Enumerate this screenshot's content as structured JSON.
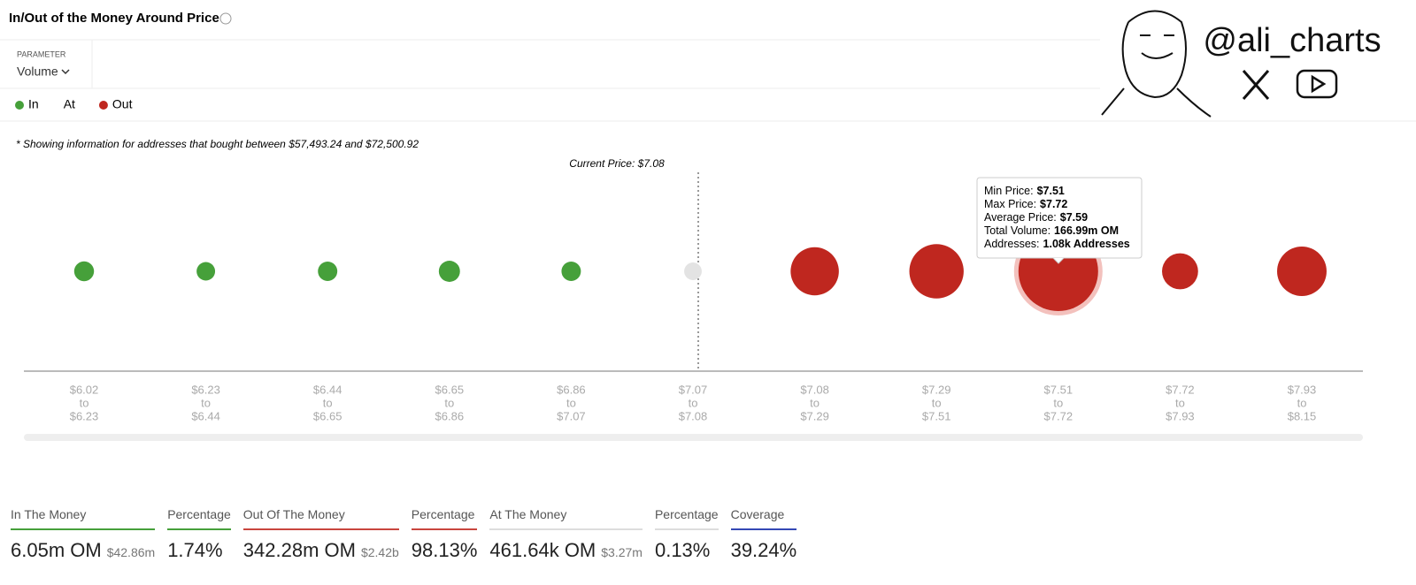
{
  "header": {
    "title": "In/Out of the Money Around Price",
    "parameter_label": "PARAMETER",
    "parameter_value": "Volume"
  },
  "chart_data": {
    "type": "bubble",
    "note": "* Showing information for addresses that bought between $57,493.24 and $72,500.92",
    "annotation": "Current Price: $7.08",
    "categories": [
      [
        "$6.02",
        "to",
        "$6.23"
      ],
      [
        "$6.23",
        "to",
        "$6.44"
      ],
      [
        "$6.44",
        "to",
        "$6.65"
      ],
      [
        "$6.65",
        "to",
        "$6.86"
      ],
      [
        "$6.86",
        "to",
        "$7.07"
      ],
      [
        "$7.07",
        "to",
        "$7.08"
      ],
      [
        "$7.08",
        "to",
        "$7.29"
      ],
      [
        "$7.29",
        "to",
        "$7.51"
      ],
      [
        "$7.51",
        "to",
        "$7.72"
      ],
      [
        "$7.72",
        "to",
        "$7.93"
      ],
      [
        "$7.93",
        "to",
        "$8.15"
      ]
    ],
    "series": [
      {
        "name": "In",
        "color": "#46a03a",
        "values": [
          1.26,
          0.74,
          1.07,
          1.91,
          1.07,
          null,
          null,
          null,
          null,
          null,
          null
        ]
      },
      {
        "name": "At",
        "color": "#e3e3e3",
        "values": [
          null,
          null,
          null,
          null,
          null,
          0.46,
          null,
          null,
          null,
          null,
          null
        ]
      },
      {
        "name": "Out",
        "color": "#bf271f",
        "values": [
          null,
          null,
          null,
          null,
          null,
          null,
          45.2,
          62.8,
          166.99,
          18.7,
          48.6
        ]
      }
    ],
    "tooltip": [
      {
        "label": "Min Price:",
        "value": "$7.51"
      },
      {
        "label": "Max Price:",
        "value": "$7.72"
      },
      {
        "label": "Average Price:",
        "value": "$7.59"
      },
      {
        "label": "Total Volume:",
        "value": "166.99m OM"
      },
      {
        "label": "Addresses:",
        "value": "1.08k Addresses"
      }
    ]
  },
  "summary": [
    {
      "label": "In The Money",
      "value": "6.05m OM",
      "sub": "$42.86m",
      "color": "#46a03a"
    },
    {
      "label": "Percentage",
      "value": "1.74%",
      "color": "#46a03a"
    },
    {
      "label": "Out Of The Money",
      "value": "342.28m OM",
      "sub": "$2.42b",
      "color": "#c9453e"
    },
    {
      "label": "Percentage",
      "value": "98.13%",
      "color": "#c9453e"
    },
    {
      "label": "At The Money",
      "value": "461.64k OM",
      "sub": "$3.27m",
      "color": "#dddddd"
    },
    {
      "label": "Percentage",
      "value": "0.13%",
      "color": "#dddddd"
    },
    {
      "label": "Coverage",
      "value": "39.24%",
      "color": "#3448b5"
    }
  ],
  "watermark": {
    "handle": "@ali_charts"
  }
}
